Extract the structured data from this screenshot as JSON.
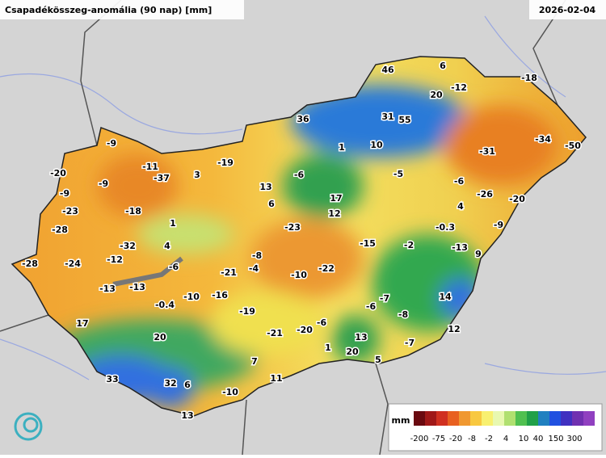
{
  "header": {
    "title": "Csapadékösszeg-anomália (90 nap) [mm]",
    "date": "2026-02-04"
  },
  "stations": {
    "values": [
      46,
      6,
      -12,
      -18,
      20,
      36,
      31,
      55,
      -9,
      1,
      10,
      -34,
      -50,
      -31,
      -20,
      -11,
      -37,
      3,
      -19,
      -6,
      -5,
      -9,
      -9,
      13,
      -6,
      -26,
      -20,
      6,
      17,
      12,
      -23,
      -18,
      4,
      -28,
      1,
      -23,
      -0.3,
      -9,
      -32,
      4,
      -15,
      -2,
      -13,
      9,
      -28,
      -24,
      -12,
      -8,
      -6,
      -21,
      -4,
      -10,
      -22,
      -13,
      -13,
      -16,
      -10,
      -7,
      14,
      -0.4,
      -19,
      -6,
      -8,
      17,
      -6,
      -21,
      -20,
      12,
      20,
      13,
      -7,
      1,
      20,
      7,
      5,
      33,
      32,
      6,
      11,
      -10,
      13
    ]
  },
  "legend": {
    "unit": "mm",
    "labels": [
      "-200",
      "-75",
      "-20",
      "-8",
      "-2",
      "4",
      "10",
      "40",
      "150",
      "300"
    ]
  }
}
